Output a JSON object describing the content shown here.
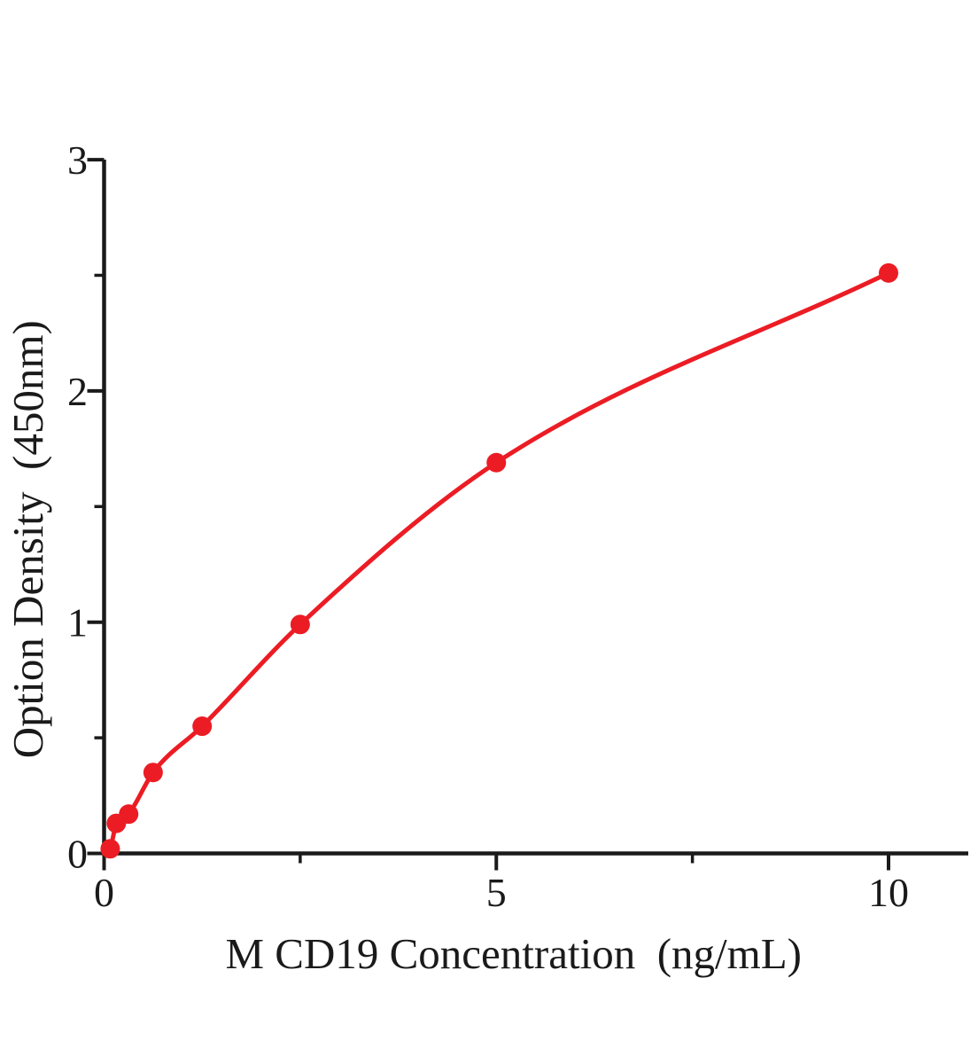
{
  "page": {
    "background": "#ffffff"
  },
  "chart_data": {
    "type": "scatter",
    "title": "",
    "xlabel": "M CD19 Concentration（ng/mL）",
    "ylabel": "Option Density（450nm）",
    "x": [
      0.078,
      0.156,
      0.313,
      0.625,
      1.25,
      2.5,
      5,
      10
    ],
    "y": [
      0.02,
      0.13,
      0.17,
      0.35,
      0.55,
      0.99,
      1.69,
      2.51
    ],
    "curve": "smooth saturating fit through all points starting at origin",
    "xlim": [
      0,
      11
    ],
    "ylim": [
      0,
      3
    ],
    "x_major_ticks": [
      0,
      5,
      10
    ],
    "x_tick_labels": [
      "0",
      "5",
      "10"
    ],
    "x_minor_ticks": [
      2.5,
      7.5
    ],
    "y_major_ticks": [
      0,
      1,
      2,
      3
    ],
    "y_tick_labels": [
      "0",
      "1",
      "2",
      "3"
    ],
    "y_minor_ticks": [
      0.5,
      1.5,
      2.5
    ],
    "grid": false,
    "legend": false,
    "line_color": "#ec1c24",
    "marker_color": "#ec1c24",
    "marker_radius": 11,
    "axis_color": "#1a1a1a"
  }
}
